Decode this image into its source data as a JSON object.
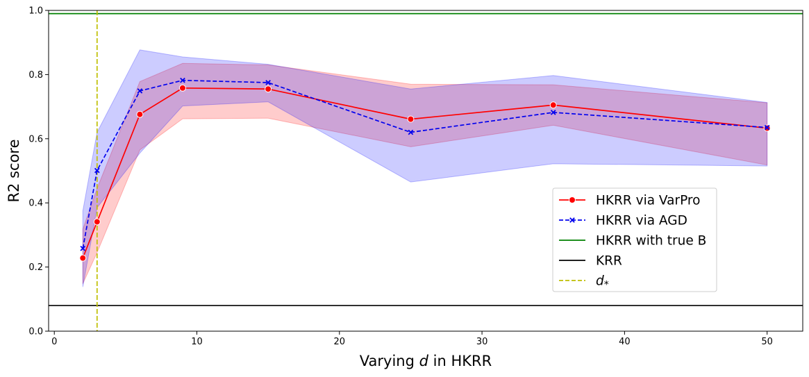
{
  "chart_data": {
    "type": "line",
    "title": "",
    "xlabel_prefix": "Varying ",
    "xlabel_var": "d",
    "xlabel_suffix": " in HKRR",
    "ylabel": "R2 score",
    "xlim": [
      -0.4,
      52.5
    ],
    "ylim": [
      0.0,
      1.0
    ],
    "xticks": [
      0,
      10,
      20,
      30,
      40,
      50
    ],
    "yticks": [
      0.0,
      0.2,
      0.4,
      0.6,
      0.8,
      1.0
    ],
    "xtick_labels": [
      "0",
      "10",
      "20",
      "30",
      "40",
      "50"
    ],
    "ytick_labels": [
      "0.0",
      "0.2",
      "0.4",
      "0.6",
      "0.8",
      "1.0"
    ],
    "x": [
      2,
      3,
      6,
      9,
      15,
      25,
      35,
      50
    ],
    "series": [
      {
        "name": "HKRR via VarPro",
        "color": "#ff0000",
        "marker": "circle",
        "dash": "solid",
        "values": [
          0.228,
          0.341,
          0.676,
          0.758,
          0.755,
          0.661,
          0.705,
          0.633
        ],
        "band_lower": [
          0.148,
          0.245,
          0.565,
          0.662,
          0.664,
          0.575,
          0.642,
          0.518
        ],
        "band_upper": [
          0.318,
          0.445,
          0.778,
          0.835,
          0.83,
          0.77,
          0.768,
          0.712
        ],
        "band_color": "#ff0000"
      },
      {
        "name": "HKRR via AGD",
        "color": "#0000ee",
        "marker": "x",
        "dash": "dashed",
        "values": [
          0.258,
          0.501,
          0.749,
          0.782,
          0.775,
          0.62,
          0.682,
          0.635
        ],
        "band_lower": [
          0.138,
          0.385,
          0.555,
          0.702,
          0.715,
          0.465,
          0.522,
          0.515
        ],
        "band_upper": [
          0.375,
          0.62,
          0.877,
          0.855,
          0.832,
          0.755,
          0.797,
          0.713
        ],
        "band_color": "#0000ff"
      }
    ],
    "hlines": [
      {
        "name": "HKRR with true B",
        "y": 0.99,
        "color": "#008000",
        "dash": "solid"
      },
      {
        "name": "KRR",
        "y": 0.08,
        "color": "#000000",
        "dash": "solid"
      }
    ],
    "vlines": [
      {
        "name": "d*",
        "x": 3,
        "color": "#bfbf00",
        "dash": "dashed"
      }
    ],
    "legend": {
      "position": "center-right",
      "entries": [
        {
          "label": "HKRR via VarPro",
          "kind": "line-marker-circle",
          "color": "#ff0000",
          "dash": "solid"
        },
        {
          "label": "HKRR via AGD",
          "kind": "line-marker-x",
          "color": "#0000ee",
          "dash": "dashed"
        },
        {
          "label": "HKRR with true B",
          "kind": "line",
          "color": "#008000",
          "dash": "solid"
        },
        {
          "label": "KRR",
          "kind": "line",
          "color": "#000000",
          "dash": "solid"
        },
        {
          "label": "d",
          "subscript": "*",
          "kind": "line",
          "color": "#bfbf00",
          "dash": "dashed"
        }
      ]
    }
  }
}
